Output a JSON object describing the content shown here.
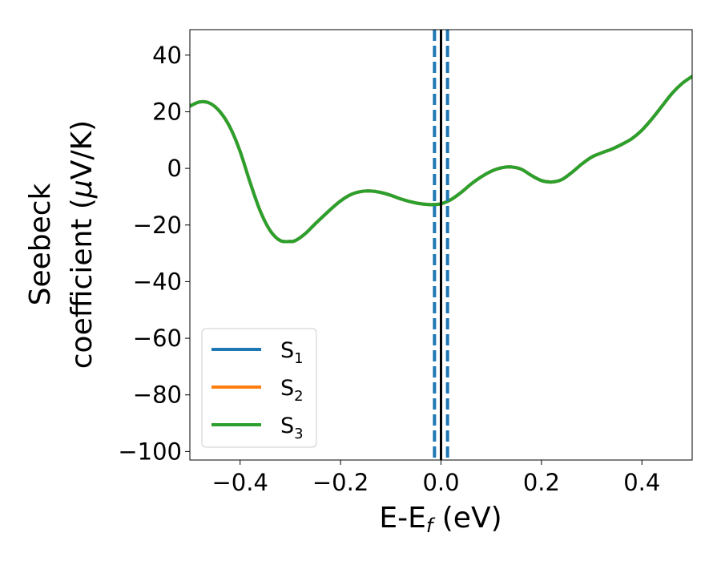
{
  "chart_data": {
    "type": "line",
    "title": "",
    "xlabel": {
      "main": "E-E",
      "sub": "f",
      "unit": " (eV)"
    },
    "ylabel": {
      "line1": "Seebeck",
      "line2": "coefficient  (",
      "mu": "μ",
      "line2_end": "V/K)"
    },
    "xlim": [
      -0.5,
      0.5
    ],
    "ylim": [
      -103,
      49
    ],
    "x_ticks": [
      -0.4,
      -0.2,
      0.0,
      0.2,
      0.4
    ],
    "x_tick_labels": [
      "−0.4",
      "−0.2",
      "0.0",
      "0.2",
      "0.4"
    ],
    "y_ticks": [
      40,
      20,
      0,
      -20,
      -40,
      -60,
      -80,
      -100
    ],
    "y_tick_labels": [
      "40",
      "20",
      "0",
      "−20",
      "−40",
      "−60",
      "−80",
      "−100"
    ],
    "grid": false,
    "legend_position": "lower-left",
    "x": [
      -0.5,
      -0.48,
      -0.46,
      -0.44,
      -0.42,
      -0.4,
      -0.38,
      -0.36,
      -0.34,
      -0.32,
      -0.3,
      -0.29,
      -0.27,
      -0.25,
      -0.22,
      -0.2,
      -0.18,
      -0.16,
      -0.14,
      -0.12,
      -0.1,
      -0.08,
      -0.06,
      -0.04,
      -0.02,
      0.0,
      0.02,
      0.04,
      0.06,
      0.08,
      0.1,
      0.12,
      0.14,
      0.16,
      0.18,
      0.2,
      0.22,
      0.24,
      0.26,
      0.28,
      0.3,
      0.32,
      0.34,
      0.36,
      0.38,
      0.4,
      0.42,
      0.44,
      0.46,
      0.48,
      0.5
    ],
    "series": [
      {
        "name_main": "S",
        "name_sub": "1",
        "color": "#1f77b4",
        "values": [
          22,
          23.5,
          23,
          20,
          14.5,
          6,
          -5,
          -15,
          -22,
          -25.5,
          -25.8,
          -25.5,
          -23,
          -19.5,
          -14.5,
          -11.5,
          -9.3,
          -8.2,
          -8.0,
          -8.5,
          -9.5,
          -10.8,
          -11.8,
          -12.5,
          -12.8,
          -12.5,
          -11.0,
          -8.5,
          -5.5,
          -3.0,
          -1.0,
          0.2,
          0.5,
          -0.3,
          -2.5,
          -4.3,
          -4.8,
          -4.0,
          -1.5,
          1.5,
          4.0,
          5.5,
          6.8,
          8.5,
          10.5,
          13.5,
          17.5,
          22,
          26.5,
          30,
          32.5
        ]
      },
      {
        "name_main": "S",
        "name_sub": "2",
        "color": "#ff7f0e",
        "values": [
          22,
          23.5,
          23,
          20,
          14.5,
          6,
          -5,
          -15,
          -22,
          -25.5,
          -25.8,
          -25.5,
          -23,
          -19.5,
          -14.5,
          -11.5,
          -9.3,
          -8.2,
          -8.0,
          -8.5,
          -9.5,
          -10.8,
          -11.8,
          -12.5,
          -12.8,
          -12.5,
          -11.0,
          -8.5,
          -5.5,
          -3.0,
          -1.0,
          0.2,
          0.5,
          -0.3,
          -2.5,
          -4.3,
          -4.8,
          -4.0,
          -1.5,
          1.5,
          4.0,
          5.5,
          6.8,
          8.5,
          10.5,
          13.5,
          17.5,
          22,
          26.5,
          30,
          32.5
        ]
      },
      {
        "name_main": "S",
        "name_sub": "3",
        "color": "#2ca02c",
        "values": [
          22,
          23.5,
          23,
          20,
          14.5,
          6,
          -5,
          -15,
          -22,
          -25.5,
          -25.8,
          -25.5,
          -23,
          -19.5,
          -14.5,
          -11.5,
          -9.3,
          -8.2,
          -8.0,
          -8.5,
          -9.5,
          -10.8,
          -11.8,
          -12.5,
          -12.8,
          -12.5,
          -11.0,
          -8.5,
          -5.5,
          -3.0,
          -1.0,
          0.2,
          0.5,
          -0.3,
          -2.5,
          -4.3,
          -4.8,
          -4.0,
          -1.5,
          1.5,
          4.0,
          5.5,
          6.8,
          8.5,
          10.5,
          13.5,
          17.5,
          22,
          26.5,
          30,
          32.5
        ]
      }
    ],
    "vlines": [
      {
        "x": 0.0,
        "color": "#000000",
        "style": "solid"
      },
      {
        "x": -0.013,
        "color": "#1f77b4",
        "style": "dashed"
      },
      {
        "x": 0.013,
        "color": "#1f77b4",
        "style": "dashed"
      }
    ]
  }
}
